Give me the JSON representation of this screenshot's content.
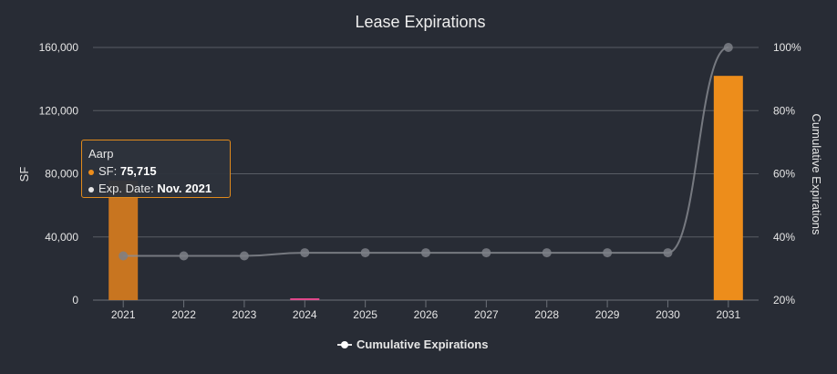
{
  "chart_data": {
    "type": "bar",
    "title": "Lease Expirations",
    "xlabel": "",
    "ylabel": "SF",
    "y2label": "Cumulative Expirations",
    "categories": [
      "2021",
      "2022",
      "2023",
      "2024",
      "2025",
      "2026",
      "2027",
      "2028",
      "2029",
      "2030",
      "2031"
    ],
    "series": [
      {
        "type": "bar",
        "values": [
          75715,
          0,
          0,
          1000,
          0,
          0,
          0,
          0,
          0,
          0,
          142000
        ],
        "colors": [
          "#c87520",
          "#ed8d1b",
          "#ed8d1b",
          "#e0488b",
          "#ed8d1b",
          "#ed8d1b",
          "#ed8d1b",
          "#ed8d1b",
          "#ed8d1b",
          "#ed8d1b",
          "#ed8d1b"
        ]
      },
      {
        "type": "line",
        "name": "Cumulative Expirations",
        "axis": "right",
        "values": [
          34,
          34,
          34,
          35,
          35,
          35,
          35,
          35,
          35,
          35,
          100
        ],
        "color": "#8a8d93"
      }
    ],
    "ylim": [
      0,
      160000
    ],
    "yticks": [
      "0",
      "40,000",
      "80,000",
      "120,000",
      "160,000"
    ],
    "y2lim": [
      20,
      100
    ],
    "y2ticks": [
      "20%",
      "40%",
      "60%",
      "80%",
      "100%"
    ],
    "grid": true,
    "legend_position": "bottom"
  },
  "tooltip": {
    "name": "Aarp",
    "sf_label": "SF: ",
    "sf_value": "75,715",
    "date_label": "Exp. Date: ",
    "date_value": "Nov. 2021",
    "sf_dot_color": "#ed8d1b"
  },
  "legend": {
    "label": "Cumulative Expirations"
  }
}
